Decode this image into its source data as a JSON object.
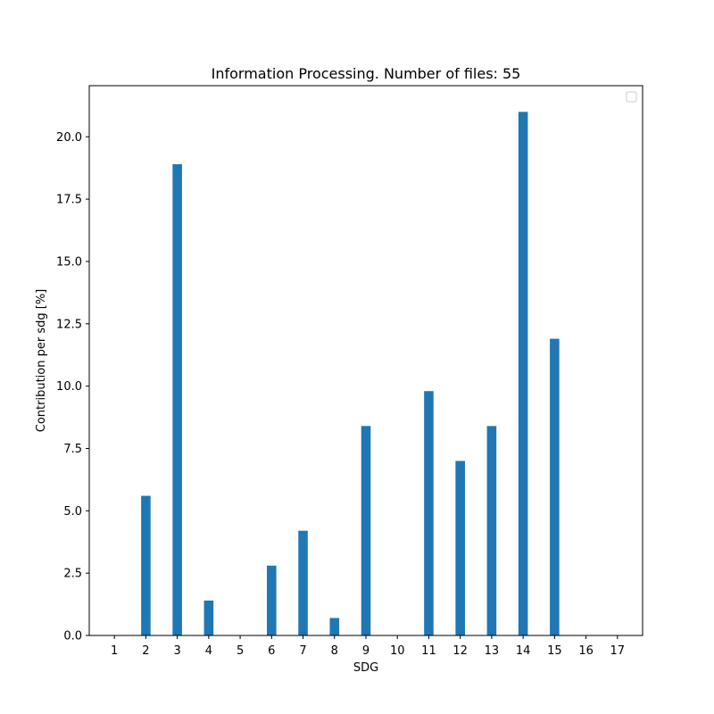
{
  "chart_data": {
    "type": "bar",
    "title": "Information Processing. Number of files: 55",
    "xlabel": "SDG",
    "ylabel": "Contribution per sdg [%]",
    "categories": [
      "1",
      "2",
      "3",
      "4",
      "5",
      "6",
      "7",
      "8",
      "9",
      "10",
      "11",
      "12",
      "13",
      "14",
      "15",
      "16",
      "17"
    ],
    "values": [
      0,
      5.6,
      18.9,
      1.4,
      0,
      2.8,
      4.2,
      0.7,
      8.4,
      0,
      9.8,
      7.0,
      8.4,
      21.0,
      11.9,
      0,
      0
    ],
    "yticks": [
      "0.0",
      "2.5",
      "5.0",
      "7.5",
      "10.0",
      "12.5",
      "15.0",
      "17.5",
      "20.0"
    ],
    "ylim": [
      0,
      22.05
    ],
    "bar_color": "#1f77b4",
    "grid": false,
    "legend": {
      "placement": "top-right",
      "entries": []
    }
  }
}
